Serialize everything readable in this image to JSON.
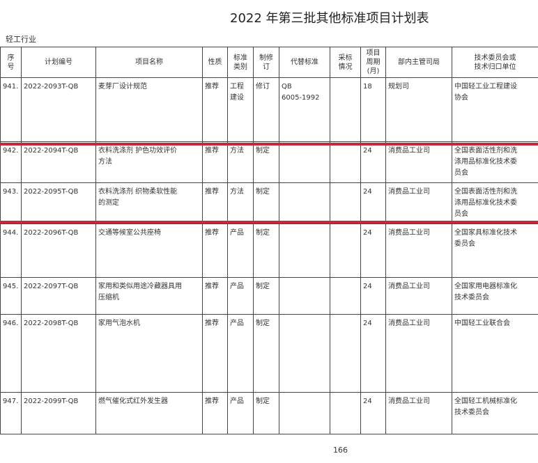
{
  "header": {
    "title": "2022 年第三批其他标准项目计划表",
    "section": "轻工行业"
  },
  "table": {
    "columns": [
      "序\n号",
      "计划编号",
      "项目名称",
      "性质",
      "标准\n类别",
      "制修\n订",
      "代替标准",
      "采标\n情况",
      "项目\n周期\n(月)",
      "部内主管司局",
      "技术委员会或\n技术归口单位"
    ],
    "rows": [
      [
        "941.",
        "2022-2093T-QB",
        "麦芽厂设计规范",
        "推荐",
        "工程\n建设",
        "修订",
        "QB\n6005-1992",
        "",
        "18",
        "规划司",
        "中国轻工业工程建设\n协会"
      ],
      [
        "942.",
        "2022-2094T-QB",
        "衣料洗涤剂 护色功效评价\n方法",
        "推荐",
        "方法",
        "制定",
        "",
        "",
        "24",
        "消费品工业司",
        "全国表面活性剂和洗\n涤用品标准化技术委\n员会"
      ],
      [
        "943.",
        "2022-2095T-QB",
        "衣料洗涤剂 织物柔软性能\n的测定",
        "推荐",
        "方法",
        "制定",
        "",
        "",
        "24",
        "消费品工业司",
        "全国表面活性剂和洗\n涤用品标准化技术委\n员会"
      ],
      [
        "944.",
        "2022-2096T-QB",
        "交通等候室公共座椅",
        "推荐",
        "产品",
        "制定",
        "",
        "",
        "24",
        "消费品工业司",
        "全国家具标准化技术\n委员会"
      ],
      [
        "945.",
        "2022-2097T-QB",
        "家用和类似用途冷藏器具用\n压缩机",
        "推荐",
        "产品",
        "制定",
        "",
        "",
        "24",
        "消费品工业司",
        "全国家用电器标准化\n技术委员会"
      ],
      [
        "946.",
        "2022-2098T-QB",
        "家用气泡水机",
        "推荐",
        "产品",
        "制定",
        "",
        "",
        "24",
        "消费品工业司",
        "中国轻工业联合会"
      ],
      [
        "947.",
        "2022-2099T-QB",
        "燃气催化式红外发生器",
        "推荐",
        "产品",
        "制定",
        "",
        "",
        "24",
        "消费品工业司",
        "全国轻工机械标准化\n技术委员会"
      ]
    ]
  },
  "footer": {
    "page": "166"
  }
}
